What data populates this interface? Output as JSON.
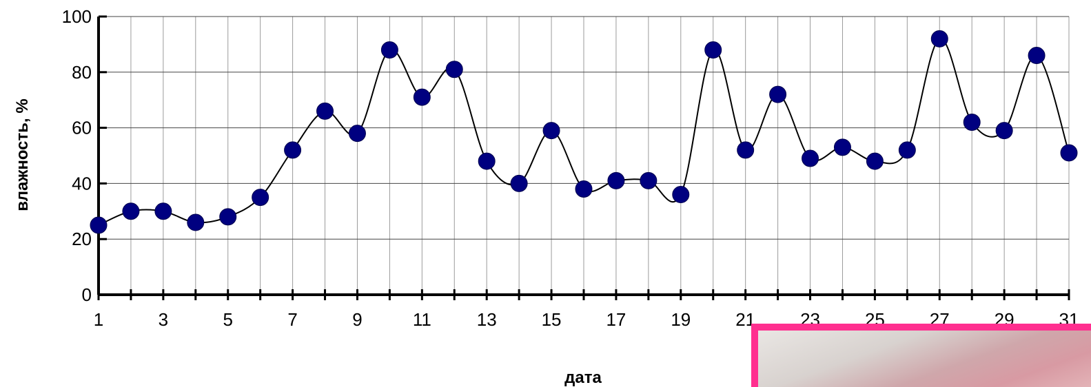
{
  "chart_data": {
    "type": "line",
    "xlabel": "дата",
    "ylabel": "влажность, %",
    "x": [
      1,
      2,
      3,
      4,
      5,
      6,
      7,
      8,
      9,
      10,
      11,
      12,
      13,
      14,
      15,
      16,
      17,
      18,
      19,
      20,
      21,
      22,
      23,
      24,
      25,
      26,
      27,
      28,
      29,
      30,
      31
    ],
    "x_tick_labels": [
      "1",
      "3",
      "5",
      "7",
      "9",
      "11",
      "13",
      "15",
      "17",
      "19",
      "21",
      "23",
      "25",
      "27",
      "29",
      "31"
    ],
    "y_tick_labels": [
      "0",
      "20",
      "40",
      "60",
      "80",
      "100"
    ],
    "ylim": [
      0,
      100
    ],
    "xlim": [
      1,
      31
    ],
    "grid": true,
    "series": [
      {
        "values": [
          25,
          30,
          30,
          26,
          28,
          35,
          52,
          66,
          58,
          88,
          71,
          81,
          48,
          40,
          59,
          38,
          41,
          41,
          36,
          88,
          52,
          72,
          49,
          53,
          48,
          52,
          92,
          62,
          59,
          86,
          51
        ],
        "line_color": "#000000",
        "marker_color": "#000080"
      }
    ]
  },
  "inset": {
    "border_color": "#ff2f8f"
  }
}
